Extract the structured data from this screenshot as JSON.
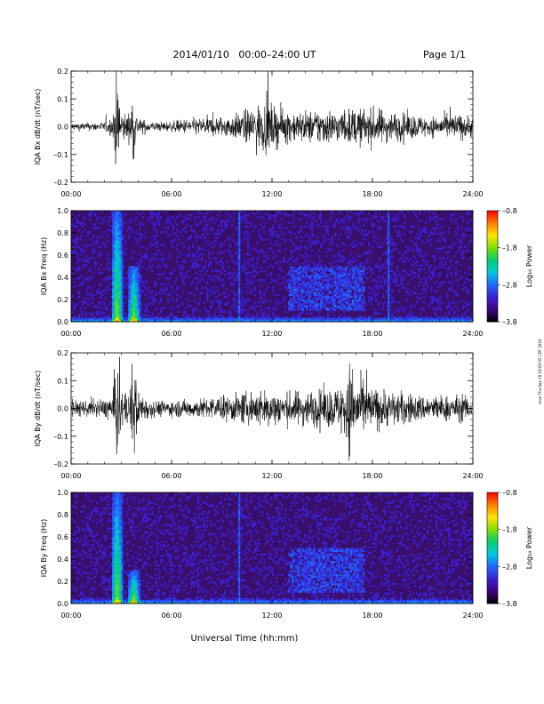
{
  "header": {
    "title": "2014/01/10   00:00–24:00 UT",
    "page": "Page 1/1"
  },
  "footer": {
    "xlabel": "Universal Time (hh:mm)",
    "stamp": "mon Thu Sep 19 18:05:05 CDT 2019"
  },
  "colors": {
    "trace": "#000000",
    "frame": "#000000",
    "background": "#ffffff",
    "spectrogram_background": "#3a0f6b",
    "colormap": [
      "#000000",
      "#400080",
      "#3b1fd0",
      "#1f66ff",
      "#00c8e0",
      "#00d070",
      "#7fdd00",
      "#ffe400",
      "#ff8000",
      "#ff0000"
    ]
  },
  "chart_data": [
    {
      "type": "line",
      "ylabel": "IQA Bx dB/dt (nT/sec)",
      "ylim": [
        -0.2,
        0.2
      ],
      "y_ticks": [
        "0.2",
        "0.1",
        "0.0",
        "–0.1",
        "–0.2"
      ],
      "xlim": [
        "00:00",
        "24:00"
      ],
      "x_ticks": [
        "00:00",
        "06:00",
        "12:00",
        "18:00",
        "24:00"
      ],
      "series": [
        {
          "time": [
            "00:00",
            "01:00",
            "02:00",
            "02:30",
            "02:42",
            "02:48",
            "03:00",
            "03:30",
            "03:42",
            "03:48",
            "04:00",
            "05:00",
            "06:00",
            "07:00",
            "08:00",
            "09:00",
            "10:00",
            "11:00",
            "11:48",
            "12:00",
            "13:00",
            "14:00",
            "15:00",
            "16:00",
            "17:00",
            "18:00",
            "19:00",
            "20:00",
            "21:00",
            "22:00",
            "23:00",
            "24:00"
          ],
          "amplitude": [
            0.015,
            0.015,
            0.018,
            0.04,
            0.2,
            0.2,
            0.06,
            0.05,
            0.16,
            0.09,
            0.03,
            0.018,
            0.02,
            0.03,
            0.035,
            0.04,
            0.05,
            0.08,
            0.1,
            0.08,
            0.06,
            0.06,
            0.07,
            0.06,
            0.07,
            0.07,
            0.06,
            0.05,
            0.04,
            0.04,
            0.05,
            0.04
          ]
        }
      ]
    },
    {
      "type": "heatmap",
      "ylabel": "IQA Bx Freq (Hz)",
      "ylim": [
        0.0,
        1.0
      ],
      "y_ticks": [
        "1.0",
        "0.8",
        "0.6",
        "0.4",
        "0.2",
        "0.0"
      ],
      "xlim": [
        "00:00",
        "24:00"
      ],
      "x_ticks": [
        "00:00",
        "06:00",
        "12:00",
        "18:00",
        "24:00"
      ],
      "colorbar": {
        "label": "Log₁₀ Power",
        "range": [
          -3.8,
          -0.8
        ],
        "ticks": [
          "–0.8",
          "–1.8",
          "–2.8",
          "–3.8"
        ]
      },
      "features": [
        {
          "time": "02:45",
          "note": "broadband event to 1.0 Hz"
        },
        {
          "time": "03:45",
          "note": "event to ~0.5 Hz"
        },
        {
          "time": "10:00",
          "note": "vertical line"
        },
        {
          "time": "19:00",
          "note": "vertical line"
        },
        {
          "time_range": [
            "13:00",
            "17:30"
          ],
          "freq_range": [
            0.1,
            0.5
          ],
          "note": "Pc1 activity"
        }
      ]
    },
    {
      "type": "line",
      "ylabel": "IQA By dB/dt (nT/sec)",
      "ylim": [
        -0.2,
        0.2
      ],
      "y_ticks": [
        "0.2",
        "0.1",
        "0.0",
        "–0.1",
        "–0.2"
      ],
      "xlim": [
        "00:00",
        "24:00"
      ],
      "x_ticks": [
        "00:00",
        "06:00",
        "12:00",
        "18:00",
        "24:00"
      ],
      "series": [
        {
          "time": [
            "00:00",
            "01:00",
            "02:00",
            "02:30",
            "02:42",
            "02:48",
            "03:00",
            "03:30",
            "03:42",
            "03:48",
            "04:00",
            "05:00",
            "06:00",
            "07:00",
            "08:00",
            "09:00",
            "10:00",
            "11:00",
            "12:00",
            "13:00",
            "14:00",
            "15:00",
            "16:00",
            "16:48",
            "17:00",
            "18:00",
            "19:00",
            "20:00",
            "21:00",
            "22:00",
            "23:00",
            "24:00"
          ],
          "amplitude": [
            0.03,
            0.03,
            0.035,
            0.06,
            0.2,
            0.2,
            0.07,
            0.06,
            0.2,
            0.2,
            0.06,
            0.03,
            0.03,
            0.035,
            0.04,
            0.045,
            0.055,
            0.07,
            0.07,
            0.06,
            0.07,
            0.07,
            0.08,
            0.2,
            0.11,
            0.08,
            0.07,
            0.06,
            0.05,
            0.05,
            0.05,
            0.045
          ]
        }
      ]
    },
    {
      "type": "heatmap",
      "ylabel": "IQA By Freq (Hz)",
      "ylim": [
        0.0,
        1.0
      ],
      "y_ticks": [
        "1.0",
        "0.8",
        "0.6",
        "0.4",
        "0.2",
        "0.0"
      ],
      "xlim": [
        "00:00",
        "24:00"
      ],
      "x_ticks": [
        "00:00",
        "06:00",
        "12:00",
        "18:00",
        "24:00"
      ],
      "colorbar": {
        "label": "Log₁₀ Power",
        "range": [
          -3.8,
          -0.8
        ],
        "ticks": [
          "–0.8",
          "–1.8",
          "–2.8",
          "–3.8"
        ]
      },
      "features": [
        {
          "time": "02:45",
          "note": "broadband event to 1.0 Hz"
        },
        {
          "time": "03:45",
          "note": "event to ~0.3 Hz"
        },
        {
          "time": "10:00",
          "note": "vertical line"
        },
        {
          "time_range": [
            "13:00",
            "17:30"
          ],
          "freq_range": [
            0.1,
            0.5
          ],
          "note": "Pc1 activity"
        }
      ]
    }
  ]
}
